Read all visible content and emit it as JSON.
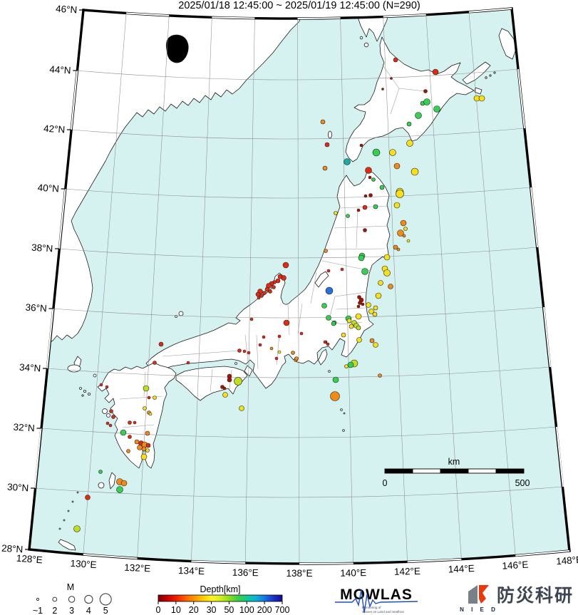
{
  "title": "2025/01/18 12:45:00 ~ 2025/01/19 12:45:00 (N=290)",
  "axes": {
    "lat_labels": [
      "46°N",
      "44°N",
      "42°N",
      "40°N",
      "38°N",
      "36°N",
      "34°N",
      "32°N",
      "30°N",
      "28°N"
    ],
    "lon_labels": [
      "128°E",
      "130°E",
      "132°E",
      "134°E",
      "136°E",
      "138°E",
      "140°E",
      "142°E",
      "144°E",
      "146°E",
      "148°E"
    ]
  },
  "scalebar": {
    "unit": "km",
    "start": "0",
    "end": "500"
  },
  "legend": {
    "magnitude": {
      "label": "M",
      "items": [
        {
          "label": "~1",
          "r": 1.6
        },
        {
          "label": "2",
          "r": 2.9
        },
        {
          "label": "3",
          "r": 4.2
        },
        {
          "label": "4",
          "r": 5.6
        },
        {
          "label": "5",
          "r": 8.0
        }
      ]
    },
    "depth": {
      "label": "Depth[km]",
      "ticks": [
        "0",
        "10",
        "20",
        "30",
        "50",
        "100",
        "200",
        "700"
      ],
      "gradient": [
        "#7b0000",
        "#c80000",
        "#ef1c00",
        "#ff5a00",
        "#ff9100",
        "#ffc800",
        "#fff32a",
        "#d8ee1e",
        "#8fdc1e",
        "#3ccf46",
        "#14c88e",
        "#0cb4d8",
        "#1478e6",
        "#1c32c8",
        "#140a96"
      ]
    }
  },
  "logos": {
    "mowlas": {
      "text": "MOWLAS",
      "sub1": "Monitoring of",
      "sub2": "Waves on Land and Seafloor",
      "color1": "#16348f",
      "color2": "#2f83cf",
      "color3": "#54b9e8"
    },
    "nied": {
      "text": "N I E D",
      "kanji": "防災科研",
      "gray": "#7a8087",
      "red": "#e8380d"
    }
  },
  "colors": {
    "sea": "#d6f2f0",
    "land": "#ffffff",
    "palette": {
      "dr": "#aa1100",
      "r": "#e12a12",
      "o": "#f08a18",
      "y": "#f7e019",
      "yg": "#c0dd20",
      "g": "#35cf52",
      "t": "#18ab9e",
      "b": "#2b6fdd"
    }
  },
  "quakes": [
    [
      555,
      84,
      3,
      "r"
    ],
    [
      611,
      101,
      4,
      "r"
    ],
    [
      597,
      128,
      2.5,
      "dr"
    ],
    [
      549,
      110,
      1.5,
      "dr"
    ],
    [
      537,
      125,
      1.5,
      "dr"
    ],
    [
      593,
      145,
      3,
      "g"
    ],
    [
      599,
      143,
      4.5,
      "g"
    ],
    [
      613,
      153,
      4.5,
      "g"
    ],
    [
      587,
      162,
      4.5,
      "g"
    ],
    [
      574,
      174,
      3,
      "g"
    ],
    [
      669,
      138,
      4,
      "y"
    ],
    [
      676,
      138,
      4,
      "y"
    ],
    [
      453,
      171,
      3,
      "o"
    ],
    [
      459,
      203,
      3,
      "r"
    ],
    [
      456,
      236,
      3,
      "o"
    ],
    [
      528,
      214,
      5,
      "g"
    ],
    [
      551,
      214,
      4.5,
      "y"
    ],
    [
      575,
      201,
      4.5,
      "y"
    ],
    [
      487,
      227,
      4.5,
      "t"
    ],
    [
      517,
      239,
      4.5,
      "r"
    ],
    [
      557,
      233,
      4,
      "o"
    ],
    [
      582,
      241,
      5,
      "y"
    ],
    [
      561,
      269,
      5,
      "y"
    ],
    [
      507,
      204,
      2,
      "dr"
    ],
    [
      524,
      252,
      2.5,
      "g"
    ],
    [
      519,
      249,
      2,
      "dr"
    ],
    [
      536,
      263,
      3,
      "g"
    ],
    [
      561,
      272,
      5.5,
      "y"
    ],
    [
      513,
      275,
      2,
      "dr"
    ],
    [
      520,
      274,
      2.5,
      "dr"
    ],
    [
      557,
      288,
      4,
      "y"
    ],
    [
      512,
      291,
      3,
      "r"
    ],
    [
      527,
      290,
      3,
      "g"
    ],
    [
      471,
      299,
      2.5,
      "y"
    ],
    [
      488,
      303,
      2.5,
      "g"
    ],
    [
      503,
      295,
      2,
      "dr"
    ],
    [
      512,
      323,
      2.5,
      "dr"
    ],
    [
      566,
      313,
      4,
      "o"
    ],
    [
      562,
      327,
      4.5,
      "o"
    ],
    [
      567,
      331,
      2,
      "o"
    ],
    [
      555,
      347,
      3,
      "o"
    ],
    [
      559,
      350,
      2,
      "o"
    ],
    [
      543,
      361,
      4,
      "y"
    ],
    [
      540,
      377,
      4,
      "y"
    ],
    [
      543,
      383,
      4.5,
      "y"
    ],
    [
      457,
      352,
      2.5,
      "o"
    ],
    [
      508,
      359,
      4,
      "g"
    ],
    [
      512,
      381,
      4.5,
      "g"
    ],
    [
      480,
      378,
      2,
      "r"
    ],
    [
      569,
      321,
      2.5,
      "y"
    ],
    [
      573,
      338,
      2,
      "y"
    ],
    [
      461,
      380,
      2,
      "r"
    ],
    [
      462,
      408,
      5,
      "b"
    ],
    [
      504,
      417,
      2.5,
      "dr"
    ],
    [
      507,
      421,
      3,
      "dr"
    ],
    [
      505,
      425,
      2.5,
      "dr"
    ],
    [
      509,
      427,
      2,
      "dr"
    ],
    [
      503,
      430,
      2,
      "dr"
    ],
    [
      534,
      397,
      3.5,
      "y"
    ],
    [
      548,
      402,
      3.5,
      "o"
    ],
    [
      531,
      415,
      4,
      "y"
    ],
    [
      517,
      428,
      3.5,
      "y"
    ],
    [
      527,
      432,
      3,
      "y"
    ],
    [
      521,
      437,
      3.5,
      "y"
    ],
    [
      526,
      441,
      3,
      "y"
    ],
    [
      503,
      444,
      4,
      "y"
    ],
    [
      455,
      429,
      3.5,
      "g"
    ],
    [
      469,
      453,
      3,
      "g"
    ],
    [
      489,
      447,
      4,
      "g"
    ],
    [
      461,
      446,
      3.5,
      "g"
    ],
    [
      468,
      454,
      3,
      "g"
    ],
    [
      490,
      450,
      3,
      "y"
    ],
    [
      497,
      453,
      3.5,
      "yg"
    ],
    [
      500,
      457,
      3.5,
      "yg"
    ],
    [
      493,
      458,
      3,
      "y"
    ],
    [
      503,
      460,
      3,
      "yg"
    ],
    [
      482,
      470,
      3,
      "y"
    ],
    [
      457,
      480,
      2,
      "dr"
    ],
    [
      522,
      478,
      3,
      "o"
    ],
    [
      527,
      484,
      3.5,
      "y"
    ],
    [
      533,
      527,
      2.5,
      "o"
    ],
    [
      504,
      477,
      3.5,
      "y"
    ],
    [
      497,
      510,
      5,
      "yg"
    ],
    [
      492,
      512,
      4,
      "g"
    ],
    [
      486,
      514,
      2.5,
      "y"
    ],
    [
      471,
      533,
      4,
      "g"
    ],
    [
      470,
      556,
      6.5,
      "o"
    ],
    [
      415,
      505,
      2.5,
      "o"
    ],
    [
      401,
      372,
      4,
      "r"
    ],
    [
      398,
      390,
      3.5,
      "r"
    ],
    [
      393,
      388,
      3,
      "r"
    ],
    [
      390,
      394,
      3,
      "r"
    ],
    [
      385,
      396,
      2.5,
      "r"
    ],
    [
      381,
      398,
      3,
      "r"
    ],
    [
      377,
      401,
      3.5,
      "r"
    ],
    [
      384,
      403,
      2.5,
      "r"
    ],
    [
      375,
      406,
      3,
      "r"
    ],
    [
      379,
      409,
      2.5,
      "r"
    ],
    [
      371,
      411,
      2.5,
      "r"
    ],
    [
      365,
      409,
      3.5,
      "r"
    ],
    [
      362,
      413,
      3,
      "r"
    ],
    [
      367,
      415,
      2.5,
      "r"
    ],
    [
      363,
      418,
      2,
      "r"
    ],
    [
      402,
      453,
      4,
      "r"
    ],
    [
      353,
      448,
      2,
      "r"
    ],
    [
      370,
      473,
      2,
      "r"
    ],
    [
      392,
      472,
      2,
      "r"
    ],
    [
      423,
      468,
      2,
      "r"
    ],
    [
      456,
      480,
      2,
      "r"
    ],
    [
      460,
      483,
      2,
      "r"
    ],
    [
      381,
      489,
      2,
      "o"
    ],
    [
      392,
      494,
      2,
      "y"
    ],
    [
      411,
      495,
      2.5,
      "o"
    ],
    [
      388,
      503,
      2,
      "r"
    ],
    [
      416,
      503,
      2.5,
      "o"
    ],
    [
      507,
      362,
      4,
      "g"
    ],
    [
      226,
      483,
      3,
      "r"
    ],
    [
      217,
      509,
      2.5,
      "r"
    ],
    [
      264,
      509,
      2,
      "r"
    ],
    [
      365,
      484,
      2,
      "r"
    ],
    [
      336,
      492,
      2.5,
      "r"
    ],
    [
      343,
      493,
      2,
      "r"
    ],
    [
      349,
      495,
      2,
      "r"
    ],
    [
      322,
      528,
      3,
      "dr"
    ],
    [
      322,
      533,
      3,
      "dr"
    ],
    [
      334,
      535,
      5.5,
      "yg"
    ],
    [
      312,
      543,
      2.5,
      "dr"
    ],
    [
      315,
      545,
      2,
      "dr"
    ],
    [
      316,
      554,
      3.5,
      "y"
    ],
    [
      339,
      573,
      3.5,
      "y"
    ],
    [
      205,
      545,
      4,
      "yg"
    ],
    [
      209,
      558,
      2,
      "r"
    ],
    [
      217,
      558,
      2.5,
      "y"
    ],
    [
      203,
      573,
      2.5,
      "y"
    ],
    [
      209,
      579,
      2.5,
      "o"
    ],
    [
      211,
      581,
      2,
      "y"
    ],
    [
      207,
      608,
      3,
      "o"
    ],
    [
      173,
      607,
      4,
      "g"
    ],
    [
      142,
      540,
      2,
      "r"
    ],
    [
      150,
      543,
      2,
      "r"
    ],
    [
      156,
      577,
      2.5,
      "r"
    ],
    [
      159,
      585,
      2.5,
      "r"
    ],
    [
      151,
      594,
      2,
      "r"
    ],
    [
      155,
      597,
      2,
      "r"
    ],
    [
      182,
      593,
      2.5,
      "r"
    ],
    [
      189,
      593,
      2,
      "r"
    ],
    [
      182,
      613,
      2.5,
      "r"
    ],
    [
      192,
      620,
      3,
      "o"
    ],
    [
      198,
      622,
      3.5,
      "r"
    ],
    [
      203,
      624,
      4,
      "o"
    ],
    [
      208,
      625,
      3,
      "r"
    ],
    [
      196,
      628,
      3.5,
      "o"
    ],
    [
      202,
      630,
      3,
      "o"
    ],
    [
      207,
      632,
      2.5,
      "y"
    ],
    [
      180,
      633,
      2.5,
      "o"
    ],
    [
      202,
      641,
      4,
      "y"
    ],
    [
      141,
      662,
      2.5,
      "g"
    ],
    [
      168,
      676,
      4.5,
      "o"
    ],
    [
      174,
      678,
      4,
      "o"
    ],
    [
      168,
      687,
      4.5,
      "g"
    ],
    [
      123,
      698,
      3.5,
      "r"
    ],
    [
      108,
      742,
      4.5,
      "yg"
    ]
  ]
}
